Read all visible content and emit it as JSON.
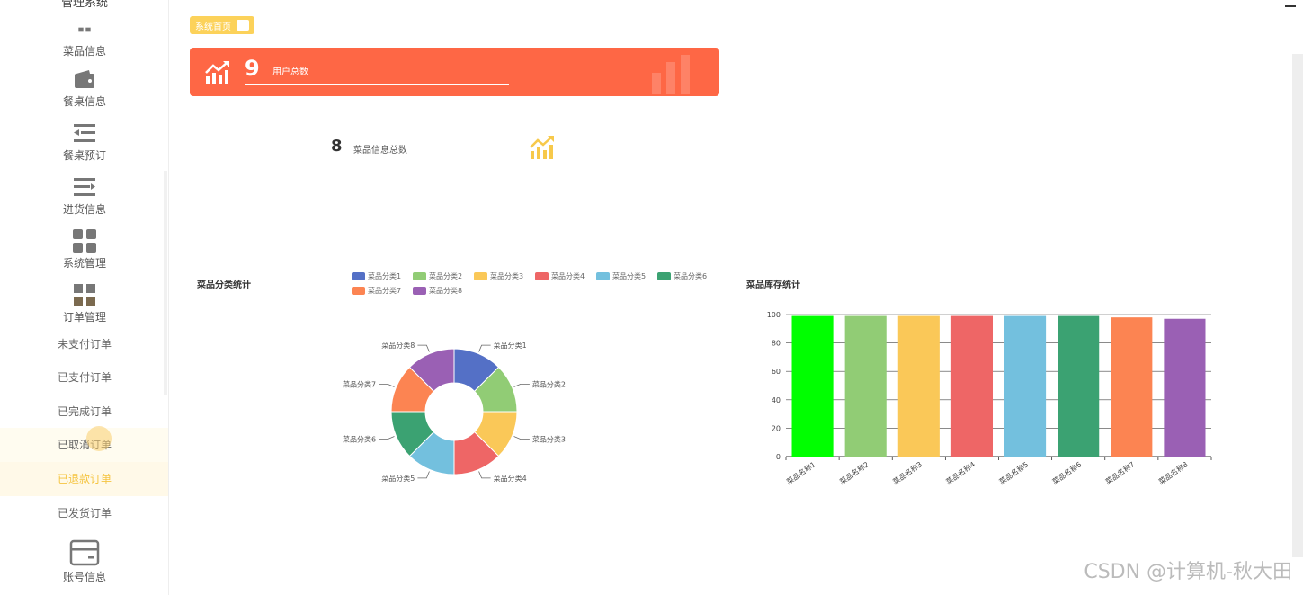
{
  "sidebar": {
    "brand": "管理系统",
    "items": [
      {
        "label": "菜品信息",
        "icon": "grid-icon"
      },
      {
        "label": "餐桌信息",
        "icon": "wallet-icon"
      },
      {
        "label": "餐桌预订",
        "icon": "list-arrow-icon"
      },
      {
        "label": "进货信息",
        "icon": "list-menu-icon"
      },
      {
        "label": "系统管理",
        "icon": "apps-icon"
      },
      {
        "label": "订单管理",
        "icon": "grid-icon"
      }
    ],
    "order_subitems": [
      "未支付订单",
      "已支付订单",
      "已完成订单",
      "已取消订单",
      "已退款订单",
      "已发货订单"
    ],
    "active_subitem": "已退款订单",
    "account": {
      "label": "账号信息",
      "icon": "card-icon"
    }
  },
  "breadcrumb": {
    "label": "系统首页"
  },
  "user_card": {
    "value": "9",
    "label": "用户总数",
    "color": "#fe6745"
  },
  "dish_stat": {
    "value": "8",
    "label": "菜品信息总数",
    "icon_color": "#f7c94b"
  },
  "watermark": "CSDN @计算机-秋大田",
  "chart_data": [
    {
      "type": "pie",
      "title": "菜品分类统计",
      "donut": true,
      "categories": [
        "菜品分类1",
        "菜品分类2",
        "菜品分类3",
        "菜品分类4",
        "菜品分类5",
        "菜品分类6",
        "菜品分类7",
        "菜品分类8"
      ],
      "values": [
        1,
        1,
        1,
        1,
        1,
        1,
        1,
        1
      ],
      "colors": [
        "#5470c6",
        "#91cc75",
        "#fac858",
        "#ee6666",
        "#73c0de",
        "#3ba272",
        "#fc8452",
        "#9a60b4"
      ],
      "legend": "top"
    },
    {
      "type": "bar",
      "title": "菜品库存统计",
      "categories": [
        "菜品名称1",
        "菜品名称2",
        "菜品名称3",
        "菜品名称4",
        "菜品名称5",
        "菜品名称6",
        "菜品名称7",
        "菜品名称8"
      ],
      "values": [
        99,
        99,
        99,
        99,
        99,
        99,
        98,
        97
      ],
      "colors": [
        "#00ff00",
        "#91cc75",
        "#fac858",
        "#ee6666",
        "#73c0de",
        "#3ba272",
        "#fc8452",
        "#9a60b4"
      ],
      "ylim": [
        0,
        100
      ],
      "yticks": [
        0,
        20,
        40,
        60,
        80,
        100
      ],
      "grid": true
    }
  ]
}
